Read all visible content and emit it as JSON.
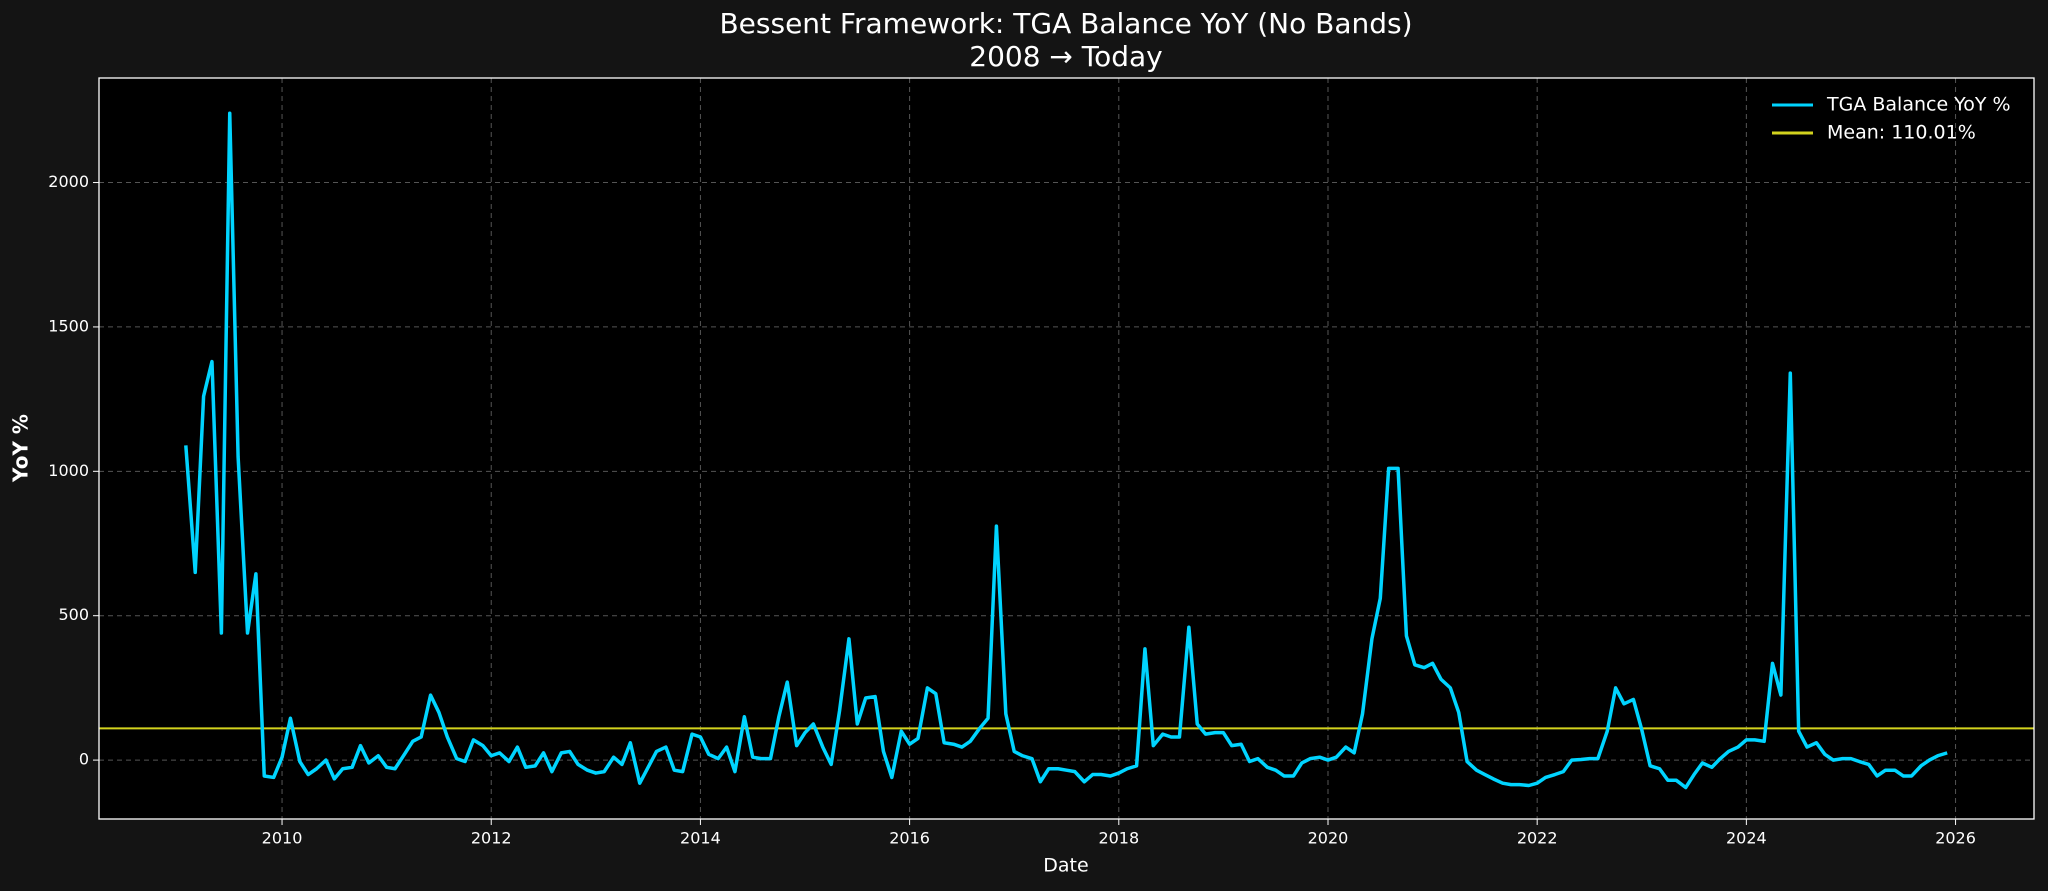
{
  "chart_data": {
    "type": "line",
    "title": "Bessent Framework: TGA Balance YoY (No Bands)",
    "subtitle": "2008 → Today",
    "x_label": "Date",
    "y_label": "YoY %",
    "x": [
      2009.08,
      2009.17,
      2009.25,
      2009.33,
      2009.42,
      2009.5,
      2009.58,
      2009.67,
      2009.75,
      2009.83,
      2009.92,
      2010.0,
      2010.08,
      2010.17,
      2010.25,
      2010.33,
      2010.42,
      2010.5,
      2010.58,
      2010.67,
      2010.75,
      2010.83,
      2010.92,
      2011.0,
      2011.08,
      2011.17,
      2011.25,
      2011.33,
      2011.42,
      2011.5,
      2011.58,
      2011.67,
      2011.75,
      2011.83,
      2011.92,
      2012.0,
      2012.08,
      2012.17,
      2012.25,
      2012.33,
      2012.42,
      2012.5,
      2012.58,
      2012.67,
      2012.75,
      2012.83,
      2012.92,
      2013.0,
      2013.08,
      2013.17,
      2013.25,
      2013.33,
      2013.42,
      2013.5,
      2013.58,
      2013.67,
      2013.75,
      2013.83,
      2013.92,
      2014.0,
      2014.08,
      2014.17,
      2014.25,
      2014.33,
      2014.42,
      2014.5,
      2014.58,
      2014.67,
      2014.75,
      2014.83,
      2014.92,
      2015.0,
      2015.08,
      2015.17,
      2015.25,
      2015.33,
      2015.42,
      2015.5,
      2015.58,
      2015.67,
      2015.75,
      2015.83,
      2015.92,
      2016.0,
      2016.08,
      2016.17,
      2016.25,
      2016.33,
      2016.42,
      2016.5,
      2016.58,
      2016.67,
      2016.75,
      2016.83,
      2016.92,
      2017.0,
      2017.08,
      2017.17,
      2017.25,
      2017.33,
      2017.42,
      2017.5,
      2017.58,
      2017.67,
      2017.75,
      2017.83,
      2017.92,
      2018.0,
      2018.08,
      2018.17,
      2018.25,
      2018.33,
      2018.42,
      2018.5,
      2018.58,
      2018.67,
      2018.75,
      2018.83,
      2018.92,
      2019.0,
      2019.08,
      2019.17,
      2019.25,
      2019.33,
      2019.42,
      2019.5,
      2019.58,
      2019.67,
      2019.75,
      2019.83,
      2019.92,
      2020.0,
      2020.08,
      2020.17,
      2020.25,
      2020.33,
      2020.42,
      2020.5,
      2020.58,
      2020.67,
      2020.75,
      2020.83,
      2020.92,
      2021.0,
      2021.08,
      2021.17,
      2021.25,
      2021.33,
      2021.42,
      2021.5,
      2021.58,
      2021.67,
      2021.75,
      2021.83,
      2021.92,
      2022.0,
      2022.08,
      2022.17,
      2022.25,
      2022.33,
      2022.42,
      2022.5,
      2022.58,
      2022.67,
      2022.75,
      2022.83,
      2022.92,
      2023.0,
      2023.08,
      2023.17,
      2023.25,
      2023.33,
      2023.42,
      2023.5,
      2023.58,
      2023.67,
      2023.75,
      2023.83,
      2023.92,
      2024.0,
      2024.08,
      2024.17,
      2024.25,
      2024.33,
      2024.42,
      2024.5,
      2024.58,
      2024.67,
      2024.75,
      2024.83,
      2024.92,
      2025.0,
      2025.08,
      2025.17,
      2025.25,
      2025.33,
      2025.42,
      2025.5,
      2025.58,
      2025.67,
      2025.75,
      2025.83,
      2025.92
    ],
    "series": [
      {
        "name": "TGA Balance YoY %",
        "color": "#00d4ff",
        "values": [
          1090,
          650,
          1260,
          1380,
          440,
          2240,
          1050,
          440,
          645,
          -55,
          -60,
          10,
          145,
          -5,
          -50,
          -30,
          0,
          -65,
          -30,
          -25,
          50,
          -10,
          15,
          -25,
          -30,
          20,
          65,
          80,
          225,
          165,
          80,
          5,
          -5,
          70,
          50,
          15,
          25,
          -5,
          45,
          -25,
          -20,
          25,
          -40,
          25,
          30,
          -15,
          -35,
          -45,
          -40,
          10,
          -15,
          60,
          -80,
          -25,
          30,
          45,
          -35,
          -40,
          90,
          80,
          20,
          5,
          45,
          -40,
          150,
          10,
          5,
          5,
          150,
          270,
          50,
          95,
          125,
          45,
          -15,
          170,
          420,
          125,
          215,
          220,
          30,
          -60,
          100,
          55,
          75,
          250,
          230,
          60,
          55,
          45,
          65,
          110,
          145,
          810,
          160,
          30,
          15,
          5,
          -75,
          -30,
          -30,
          -35,
          -40,
          -75,
          -50,
          -50,
          -55,
          -45,
          -30,
          -20,
          385,
          50,
          90,
          80,
          80,
          460,
          125,
          90,
          95,
          95,
          50,
          55,
          -5,
          5,
          -25,
          -35,
          -55,
          -55,
          -10,
          5,
          10,
          0,
          10,
          45,
          25,
          160,
          420,
          560,
          1010,
          1010,
          430,
          330,
          320,
          335,
          280,
          250,
          165,
          -5,
          -35,
          -50,
          -65,
          -80,
          -85,
          -85,
          -88,
          -80,
          -60,
          -50,
          -40,
          0,
          2,
          5,
          5,
          100,
          250,
          195,
          210,
          105,
          -20,
          -30,
          -70,
          -70,
          -95,
          -50,
          -10,
          -25,
          5,
          30,
          45,
          70,
          70,
          65,
          335,
          225,
          1340,
          100,
          45,
          60,
          20,
          0,
          5,
          5,
          -5,
          -15,
          -55,
          -35,
          -35,
          -55,
          -55,
          -20,
          0,
          15,
          25
        ]
      }
    ],
    "hlines": [
      {
        "name": "Mean: 110.01%",
        "value": 110.01,
        "color": "#d2d21e"
      }
    ],
    "xlim": [
      2008.25,
      2026.75
    ],
    "ylim": [
      -204,
      2362
    ],
    "xticks": [
      2010,
      2012,
      2014,
      2016,
      2018,
      2020,
      2022,
      2024,
      2026
    ],
    "yticks": [
      0,
      500,
      1000,
      1500,
      2000
    ],
    "grid": true,
    "legend": "upper right"
  }
}
